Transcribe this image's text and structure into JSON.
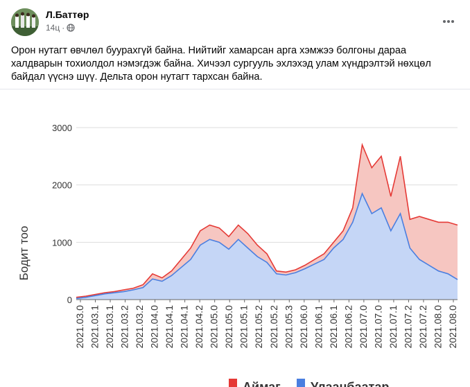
{
  "post": {
    "author": "Л.Баттөр",
    "time": "14ц",
    "separator": "·",
    "privacy_icon": "globe-icon",
    "more_icon": "more-horizontal-icon",
    "text": "Орон нутагт өвчлөл буурахгүй байна. Нийтийг хамарсан арга хэмжээ болгоны дараа халдварын тохиолдол нэмэгдэж байна. Хичээл сургууль эхлэхэд улам хүндрэлтэй нөхцөл байдал үүснэ шүү. Дельта орон нутагт тархсан байна."
  },
  "chart_data": {
    "type": "area",
    "ylabel": "Бодит тоо",
    "ylim": [
      0,
      3000
    ],
    "yticks": [
      0,
      1000,
      2000,
      3000
    ],
    "x_tick_labels": [
      "2021.03.0",
      "2021.03.1",
      "2021.03.2",
      "2021.04.0",
      "2021.04.1",
      "2021.04.2",
      "2021.05.0",
      "2021.05.1",
      "2021.05.2",
      "2021.05.3",
      "2021.06.0",
      "2021.06.1",
      "2021.06.2",
      "2021.07.0",
      "2021.07.1",
      "2021.07.2",
      "2021.08.0"
    ],
    "x_labels_all": [
      "2021.03.0",
      "2021.03.1",
      "2021.03.1",
      "2021.03.2",
      "2021.03.2",
      "2021.04.0",
      "2021.04.1",
      "2021.04.1",
      "2021.04.2",
      "2021.05.0",
      "2021.05.0",
      "2021.05.1",
      "2021.05.2",
      "2021.05.2",
      "2021.05.3",
      "2021.06.0",
      "2021.06.1",
      "2021.06.1",
      "2021.06.2",
      "2021.07.0",
      "2021.07.0",
      "2021.07.1",
      "2021.07.2",
      "2021.07.2",
      "2021.08.0",
      "2021.08.0"
    ],
    "legend": [
      "Аймаг",
      "Улаанбаатар"
    ],
    "legend_position": "bottom",
    "colors": {
      "aimag": "#e53935",
      "aimag_fill": "#f6c6c1",
      "ub": "#4a7fe0",
      "ub_fill": "#c5d6f6",
      "grid": "#dddddd"
    },
    "series": [
      {
        "name": "Аймаг",
        "values": [
          40,
          60,
          90,
          120,
          140,
          170,
          200,
          260,
          450,
          380,
          500,
          700,
          900,
          1200,
          1300,
          1250,
          1100,
          1300,
          1150,
          950,
          800,
          500,
          480,
          520,
          600,
          700,
          800,
          1000,
          1200,
          1600,
          2700,
          2300,
          2500,
          1800,
          2500,
          1400,
          1450,
          1400,
          1350,
          1350,
          1300
        ]
      },
      {
        "name": "Улаанбаатар",
        "values": [
          20,
          40,
          70,
          100,
          120,
          140,
          170,
          210,
          360,
          320,
          420,
          560,
          700,
          950,
          1050,
          1000,
          880,
          1050,
          900,
          750,
          650,
          450,
          430,
          470,
          540,
          620,
          700,
          900,
          1050,
          1350,
          1850,
          1500,
          1600,
          1200,
          1500,
          900,
          700,
          600,
          500,
          450,
          350
        ]
      }
    ]
  }
}
